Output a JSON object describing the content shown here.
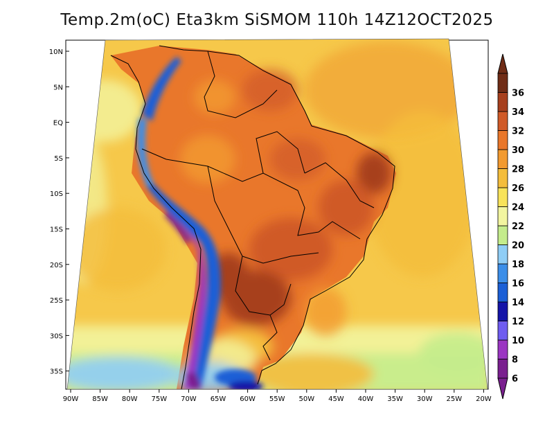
{
  "title": "Temp.2m(oC) Eta3km SiSMOM 110h 14Z12OCT2025",
  "axes": {
    "lat_labels": [
      "10N",
      "5N",
      "EQ",
      "5S",
      "10S",
      "15S",
      "20S",
      "25S",
      "30S",
      "35S"
    ],
    "lon_labels": [
      "90W",
      "85W",
      "80W",
      "75W",
      "70W",
      "65W",
      "60W",
      "55W",
      "50W",
      "45W",
      "40W",
      "35W",
      "30W",
      "25W",
      "20W"
    ]
  },
  "colorbar": {
    "labels": [
      "6",
      "8",
      "10",
      "12",
      "14",
      "16",
      "18",
      "20",
      "22",
      "24",
      "26",
      "28",
      "30",
      "32",
      "34",
      "36"
    ],
    "colors": [
      "#7a1f8f",
      "#9b36c2",
      "#6f5cf0",
      "#1414a8",
      "#1b5fd6",
      "#3c8ee8",
      "#8fcdf5",
      "#c4ec8c",
      "#f2f5a0",
      "#f8e35a",
      "#f4bd3c",
      "#f29a30",
      "#e9772b",
      "#d05a28",
      "#a7401e",
      "#6f2c16"
    ],
    "units": "oC"
  }
}
